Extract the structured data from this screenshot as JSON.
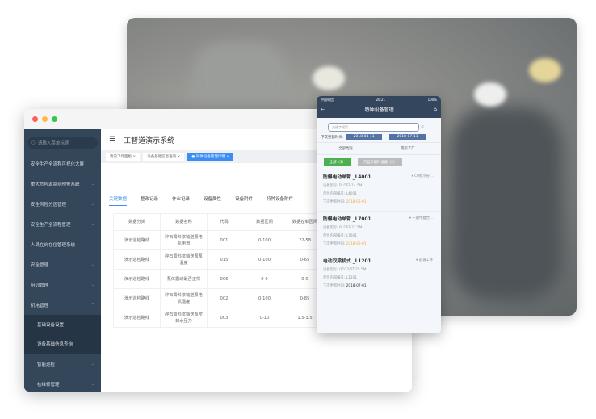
{
  "desktop": {
    "sidebar": {
      "search_placeholder": "请输入菜单标题",
      "items": [
        {
          "label": "安全生产全流程可视化大屏",
          "chevron": false
        },
        {
          "label": "重大危险源监测预警系统",
          "chevron": true
        },
        {
          "label": "安全风险分区管理",
          "chevron": true
        },
        {
          "label": "安全生产全流程管理",
          "chevron": true
        },
        {
          "label": "人员在岗在位管理系统",
          "chevron": true
        },
        {
          "label": "安全管理",
          "chevron": true
        },
        {
          "label": "培训管理",
          "chevron": true
        },
        {
          "label": "机电管理",
          "chevron": true
        }
      ],
      "sub_items": [
        "基础设备设置",
        "设备基础信息查询"
      ],
      "sub_items2": [
        "智能巡检",
        "检维修管理"
      ]
    },
    "title": "工智道演示系统",
    "tags": [
      "我的工作面板",
      "设备基础信息查询",
      "同体设备管理详情"
    ],
    "tabs": [
      "关键数据",
      "整改记录",
      "作业记录",
      "设备属性",
      "设备附件",
      "特种设备附件"
    ],
    "table": {
      "headers": [
        "数据分类",
        "数据名称",
        "代码",
        "数据区间",
        "数据控制区间"
      ],
      "rows": [
        [
          "演示巡检路线",
          "碎石膏料浆输送泵电机电流",
          "001",
          "0-100",
          "22-58"
        ],
        [
          "演示巡检路线",
          "碎石膏料浆输送泵泵温度",
          "015",
          "0-100",
          "0-65"
        ],
        [
          "演示巡检路线",
          "泵体震动最否正常",
          "006",
          "0-0",
          "0-0"
        ],
        [
          "演示巡检路线",
          "碎石膏料浆输送泵电机温度",
          "002",
          "0-100",
          "0-85"
        ],
        [
          "演示巡检路线",
          "碎石膏料浆输送泵密封水压力",
          "003",
          "0-10",
          "1.5-3.5"
        ]
      ]
    }
  },
  "phone": {
    "status": {
      "carrier": "中国电信",
      "time": "20:21",
      "battery": "100%"
    },
    "title": "特种设备管理",
    "search_placeholder": "关键字搜索",
    "date_label": "下次更新时间:",
    "date_from": "2018-04-11",
    "date_sep": "~",
    "date_to": "2018-07-11",
    "filters": [
      "全部类别",
      "南京工厂"
    ],
    "btn_all": "全部（3）",
    "btn_temp": "只显示临时设备（2）",
    "cards": [
      {
        "name": "防爆电动单臂 _L4001",
        "location": "C0原冷分...",
        "model_label": "设备型号:",
        "model": "BLDST-14.5M",
        "code_label": "单位内部编号:",
        "code": "L4001",
        "next_label": "下次更新时间:",
        "next": "2018-05-01"
      },
      {
        "name": "防爆电动单臂 _L7001",
        "location": "一期甲复合...",
        "model_label": "设备型号:",
        "model": "BLDST-22.5M",
        "code_label": "单位内部编号:",
        "code": "L7001",
        "next_label": "下次更新时间:",
        "next": "2018-05-01"
      },
      {
        "name": "电动双梁桥式 _L1201",
        "location": "前道工序",
        "model_label": "设备型号:",
        "model": "QD32/5T-25.5M",
        "code_label": "单位内部编号:",
        "code": "L1201",
        "next_label": "下次更新时间:",
        "next": "2018-07-01"
      }
    ]
  },
  "colors": {
    "accent": "#3c8ef2",
    "sidebar": "#33465a",
    "phone_header": "#34465d",
    "green": "#4caf50",
    "orange": "#f0a83a"
  }
}
